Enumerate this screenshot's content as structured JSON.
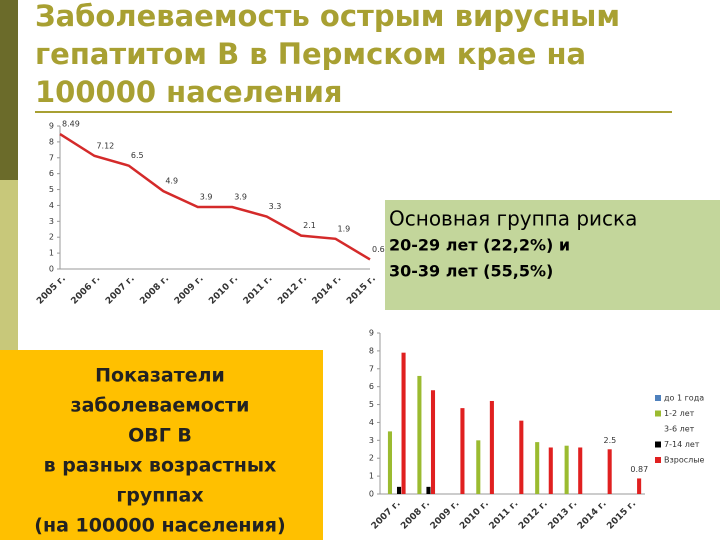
{
  "title_lines": [
    "Заболеваемость острым вирусным",
    "гепатитом В в Пермском крае на",
    "100000 населения"
  ],
  "risk_box": {
    "heading": "Основная группа риска",
    "lines": [
      "20-29 лет (22,2%) и",
      "30-39 лет (55,5%)"
    ]
  },
  "indicator_box": {
    "lines": [
      "Показатели",
      "заболеваемости",
      "ОВГ В",
      "в разных возрастных",
      "группах",
      "(на 100000 населения)"
    ]
  },
  "chart_data": [
    {
      "type": "line",
      "categories": [
        "2005 г.",
        "2006 г.",
        "2007 г.",
        "2008 г.",
        "2009 г.",
        "2010 г.",
        "2011 г.",
        "2012 г.",
        "2014 г.",
        "2015 г."
      ],
      "values": [
        8.49,
        7.12,
        6.5,
        4.9,
        3.9,
        3.9,
        3.3,
        2.1,
        1.9,
        0.6
      ],
      "color": "#d42a2a",
      "ylim": [
        0,
        9
      ],
      "yticks": [
        0,
        1,
        2,
        3,
        4,
        5,
        6,
        7,
        8,
        9
      ],
      "grid": false
    },
    {
      "type": "bar",
      "categories": [
        "2007 г.",
        "2008 г.",
        "2009 г.",
        "2010 г.",
        "2011 г.",
        "2012 г.",
        "2013 г.",
        "2014 г.",
        "2015 г."
      ],
      "series": [
        {
          "name": "до 1 года",
          "color": "#4f81bd",
          "values": [
            null,
            null,
            null,
            null,
            null,
            null,
            null,
            null,
            null
          ]
        },
        {
          "name": "1-2 лет",
          "color": "#9bbb30",
          "values": [
            3.5,
            6.6,
            null,
            3.0,
            null,
            2.9,
            2.7,
            null,
            null
          ]
        },
        {
          "name": "3-6 лет",
          "color": "#ffffff",
          "values": [
            null,
            null,
            null,
            null,
            null,
            null,
            null,
            null,
            null
          ]
        },
        {
          "name": "7-14 лет",
          "color": "#000000",
          "values": [
            0.4,
            0.4,
            null,
            null,
            null,
            null,
            null,
            null,
            null
          ]
        },
        {
          "name": "Взрослые",
          "color": "#e02020",
          "values": [
            7.9,
            5.8,
            4.8,
            5.2,
            4.1,
            2.6,
            2.6,
            2.5,
            0.87
          ],
          "value_labels": [
            null,
            null,
            null,
            null,
            null,
            null,
            null,
            "2.5",
            "0.87"
          ]
        }
      ],
      "ylim": [
        0,
        9
      ],
      "yticks": [
        0,
        1,
        2,
        3,
        4,
        5,
        6,
        7,
        8,
        9
      ],
      "grid": false,
      "legend": "right"
    }
  ]
}
